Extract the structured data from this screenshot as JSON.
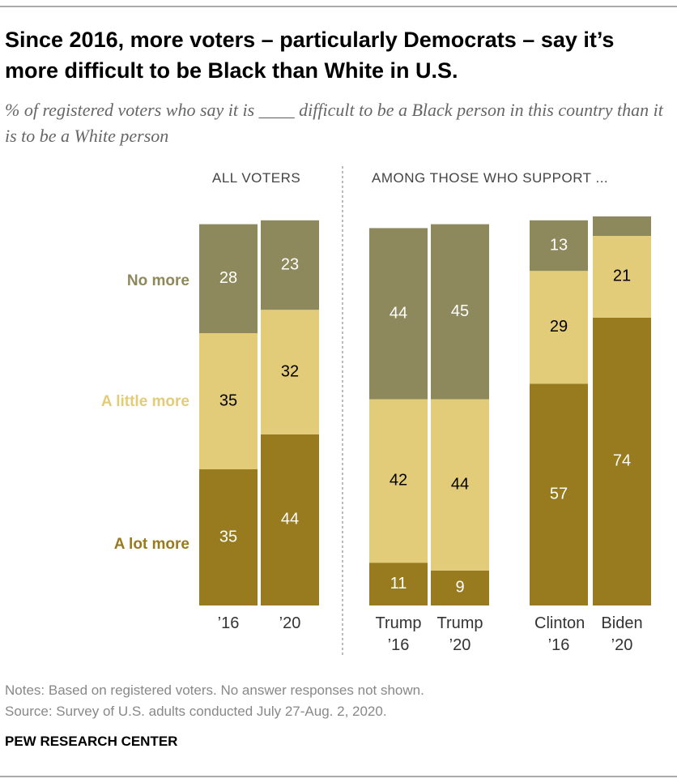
{
  "chart_data": {
    "type": "stacked-bar",
    "title": "Since 2016, more voters – particularly Democrats – say it’s more difficult to be Black than White in U.S.",
    "subtitle": "% of registered voters who say it is ____ difficult to be a Black person in this country than it is to be a White person",
    "group_labels": [
      "ALL VOTERS",
      "AMONG THOSE WHO SUPPORT ..."
    ],
    "categories": [
      "’16",
      "’20",
      "Trump ’16",
      "Trump ’20",
      "Clinton ’16",
      "Biden ’20"
    ],
    "series": [
      {
        "name": "A lot more",
        "color": "#987b1e",
        "values": [
          35,
          44,
          11,
          9,
          57,
          74
        ]
      },
      {
        "name": "A little more",
        "color": "#e2cc7a",
        "values": [
          35,
          32,
          42,
          44,
          29,
          21
        ]
      },
      {
        "name": "No more",
        "color": "#8e895c",
        "values": [
          28,
          23,
          44,
          45,
          13,
          5
        ]
      }
    ],
    "ylim": [
      0,
      100
    ],
    "notes": "Notes: Based on registered voters. No answer responses not shown.",
    "source": "Source: Survey of U.S. adults conducted July 27-Aug. 2, 2020.",
    "brand": "PEW RESEARCH CENTER"
  }
}
